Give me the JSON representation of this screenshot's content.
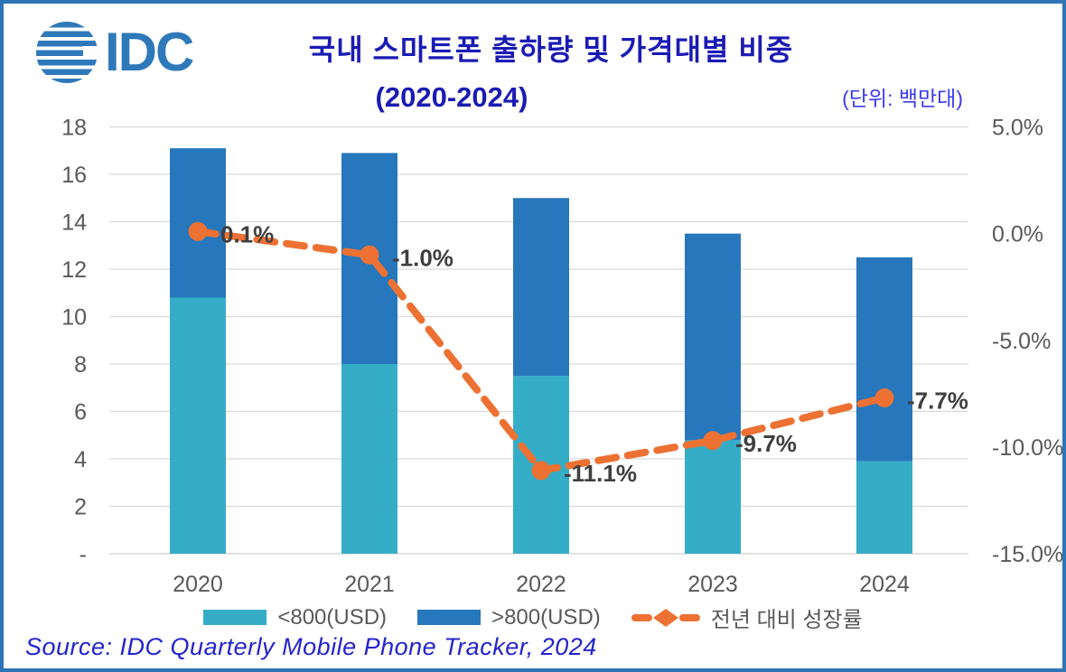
{
  "header": {
    "logo_text": "IDC",
    "title_line1": "국내 스마트폰 출하량 및 가격대별 비중",
    "title_line2": "(2020-2024)",
    "unit_label": "(단위: 백만대)"
  },
  "colors": {
    "frame_border": "#2E75B6",
    "logo_blue": "#2E79B9",
    "title": "#1B1BB4",
    "unit_label": "#3B3BF0",
    "source": "#2424CE",
    "axis_text": "#595959",
    "gridline": "#D9D9D9",
    "data_label": "#3F3F3F",
    "bar_under800": "#35ADC6",
    "bar_over800": "#2777BC",
    "growth_line": "#ED7132"
  },
  "chart_data": {
    "type": "bar",
    "subtype": "stacked-bars-with-secondary-axis-line",
    "title": "국내 스마트폰 출하량 및 가격대별 비중 (2020-2024)",
    "unit": "(단위: 백만대)",
    "categories": [
      "2020",
      "2021",
      "2022",
      "2023",
      "2024"
    ],
    "series": [
      {
        "name": "<800(USD)",
        "kind": "bar",
        "stack": "shipments",
        "color": "#35ADC6",
        "values": [
          10.8,
          8.0,
          7.5,
          4.8,
          3.9
        ]
      },
      {
        "name": ">800(USD)",
        "kind": "bar",
        "stack": "shipments",
        "color": "#2777BC",
        "values": [
          6.3,
          8.9,
          7.5,
          8.7,
          8.6
        ]
      },
      {
        "name": "전년 대비 성장률",
        "kind": "line",
        "axis": "right",
        "color": "#ED7132",
        "dashed": true,
        "marker": "circle",
        "values": [
          0.1,
          -1.0,
          -11.1,
          -9.7,
          -7.7
        ],
        "point_labels": [
          "0.1%",
          "-1.0%",
          "-11.1%",
          "-9.7%",
          "-7.7%"
        ]
      }
    ],
    "bar_totals": [
      17.1,
      16.9,
      15.0,
      13.5,
      12.5
    ],
    "left_axis": {
      "range": [
        0,
        18
      ],
      "tick_labels": [
        "18",
        "16",
        "14",
        "12",
        "10",
        "8",
        "6",
        "4",
        "2",
        "-"
      ],
      "tick_values": [
        18,
        16,
        14,
        12,
        10,
        8,
        6,
        4,
        2,
        0
      ]
    },
    "right_axis": {
      "range": [
        -15,
        5
      ],
      "tick_labels": [
        "5.0%",
        "0.0%",
        "-5.0%",
        "-10.0%",
        "-15.0%"
      ],
      "tick_values": [
        5,
        0,
        -5,
        -10,
        -15
      ]
    },
    "grid": "horizontal",
    "legend_position": "bottom"
  },
  "legend": [
    {
      "label": "<800(USD)",
      "swatch_color": "#35ADC6",
      "marker": "rect"
    },
    {
      "label": ">800(USD)",
      "swatch_color": "#2777BC",
      "marker": "rect"
    },
    {
      "label": "전년 대비 성장률",
      "swatch_color": "#ED7132",
      "marker": "dash-diamond-dash"
    }
  ],
  "footer": {
    "source": "Source: IDC Quarterly Mobile Phone Tracker, 2024"
  }
}
